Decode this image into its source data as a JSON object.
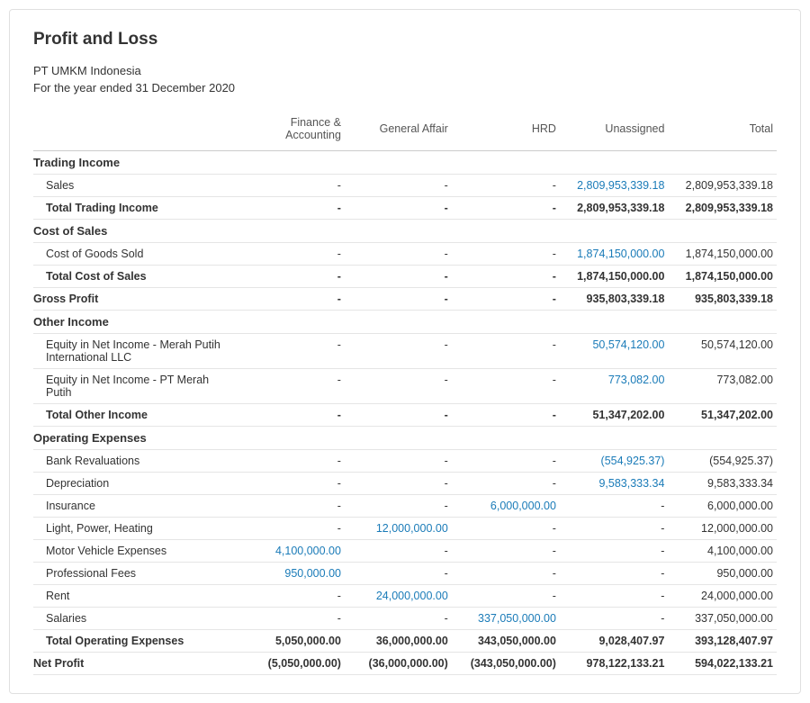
{
  "title": "Profit and Loss",
  "company": "PT UMKM Indonesia",
  "period": "For the year ended 31 December 2020",
  "columns": [
    "",
    "Finance & Accounting",
    "General Affair",
    "HRD",
    "Unassigned",
    "Total"
  ],
  "colors": {
    "link": "#1a7bb8",
    "text": "#333333",
    "border": "#e5e5e5"
  },
  "sections": [
    {
      "name": "Trading Income",
      "rows": [
        {
          "label": "Sales",
          "vals": [
            "-",
            "-",
            "-",
            {
              "v": "2,809,953,339.18",
              "link": true
            },
            "2,809,953,339.18"
          ]
        }
      ],
      "total": {
        "label": "Total Trading Income",
        "vals": [
          "-",
          "-",
          "-",
          "2,809,953,339.18",
          "2,809,953,339.18"
        ]
      }
    },
    {
      "name": "Cost of Sales",
      "rows": [
        {
          "label": "Cost of Goods Sold",
          "vals": [
            "-",
            "-",
            "-",
            {
              "v": "1,874,150,000.00",
              "link": true
            },
            "1,874,150,000.00"
          ]
        }
      ],
      "total": {
        "label": "Total Cost of Sales",
        "vals": [
          "-",
          "-",
          "-",
          "1,874,150,000.00",
          "1,874,150,000.00"
        ]
      }
    },
    {
      "gross": true,
      "total": {
        "label": "Gross Profit",
        "vals": [
          "-",
          "-",
          "-",
          "935,803,339.18",
          "935,803,339.18"
        ]
      }
    },
    {
      "name": "Other Income",
      "rows": [
        {
          "label": "Equity in Net Income - Merah Putih International LLC",
          "vals": [
            "-",
            "-",
            "-",
            {
              "v": "50,574,120.00",
              "link": true
            },
            "50,574,120.00"
          ]
        },
        {
          "label": "Equity in Net Income - PT Merah Putih",
          "vals": [
            "-",
            "-",
            "-",
            {
              "v": "773,082.00",
              "link": true
            },
            "773,082.00"
          ]
        }
      ],
      "total": {
        "label": "Total Other Income",
        "vals": [
          "-",
          "-",
          "-",
          "51,347,202.00",
          "51,347,202.00"
        ]
      }
    },
    {
      "name": "Operating Expenses",
      "rows": [
        {
          "label": "Bank Revaluations",
          "vals": [
            "-",
            "-",
            "-",
            {
              "v": "(554,925.37)",
              "link": true
            },
            "(554,925.37)"
          ]
        },
        {
          "label": "Depreciation",
          "vals": [
            "-",
            "-",
            "-",
            {
              "v": "9,583,333.34",
              "link": true
            },
            "9,583,333.34"
          ]
        },
        {
          "label": "Insurance",
          "vals": [
            "-",
            "-",
            {
              "v": "6,000,000.00",
              "link": true
            },
            "-",
            "6,000,000.00"
          ]
        },
        {
          "label": "Light, Power, Heating",
          "vals": [
            "-",
            {
              "v": "12,000,000.00",
              "link": true
            },
            "-",
            "-",
            "12,000,000.00"
          ]
        },
        {
          "label": "Motor Vehicle Expenses",
          "vals": [
            {
              "v": "4,100,000.00",
              "link": true
            },
            "-",
            "-",
            "-",
            "4,100,000.00"
          ]
        },
        {
          "label": "Professional Fees",
          "vals": [
            {
              "v": "950,000.00",
              "link": true
            },
            "-",
            "-",
            "-",
            "950,000.00"
          ]
        },
        {
          "label": "Rent",
          "vals": [
            "-",
            {
              "v": "24,000,000.00",
              "link": true
            },
            "-",
            "-",
            "24,000,000.00"
          ]
        },
        {
          "label": "Salaries",
          "vals": [
            "-",
            "-",
            {
              "v": "337,050,000.00",
              "link": true
            },
            "-",
            "337,050,000.00"
          ]
        }
      ],
      "total": {
        "label": "Total Operating Expenses",
        "vals": [
          "5,050,000.00",
          "36,000,000.00",
          "343,050,000.00",
          "9,028,407.97",
          "393,128,407.97"
        ]
      }
    },
    {
      "net": true,
      "total": {
        "label": "Net Profit",
        "vals": [
          "(5,050,000.00)",
          "(36,000,000.00)",
          "(343,050,000.00)",
          "978,122,133.21",
          "594,022,133.21"
        ]
      }
    }
  ]
}
